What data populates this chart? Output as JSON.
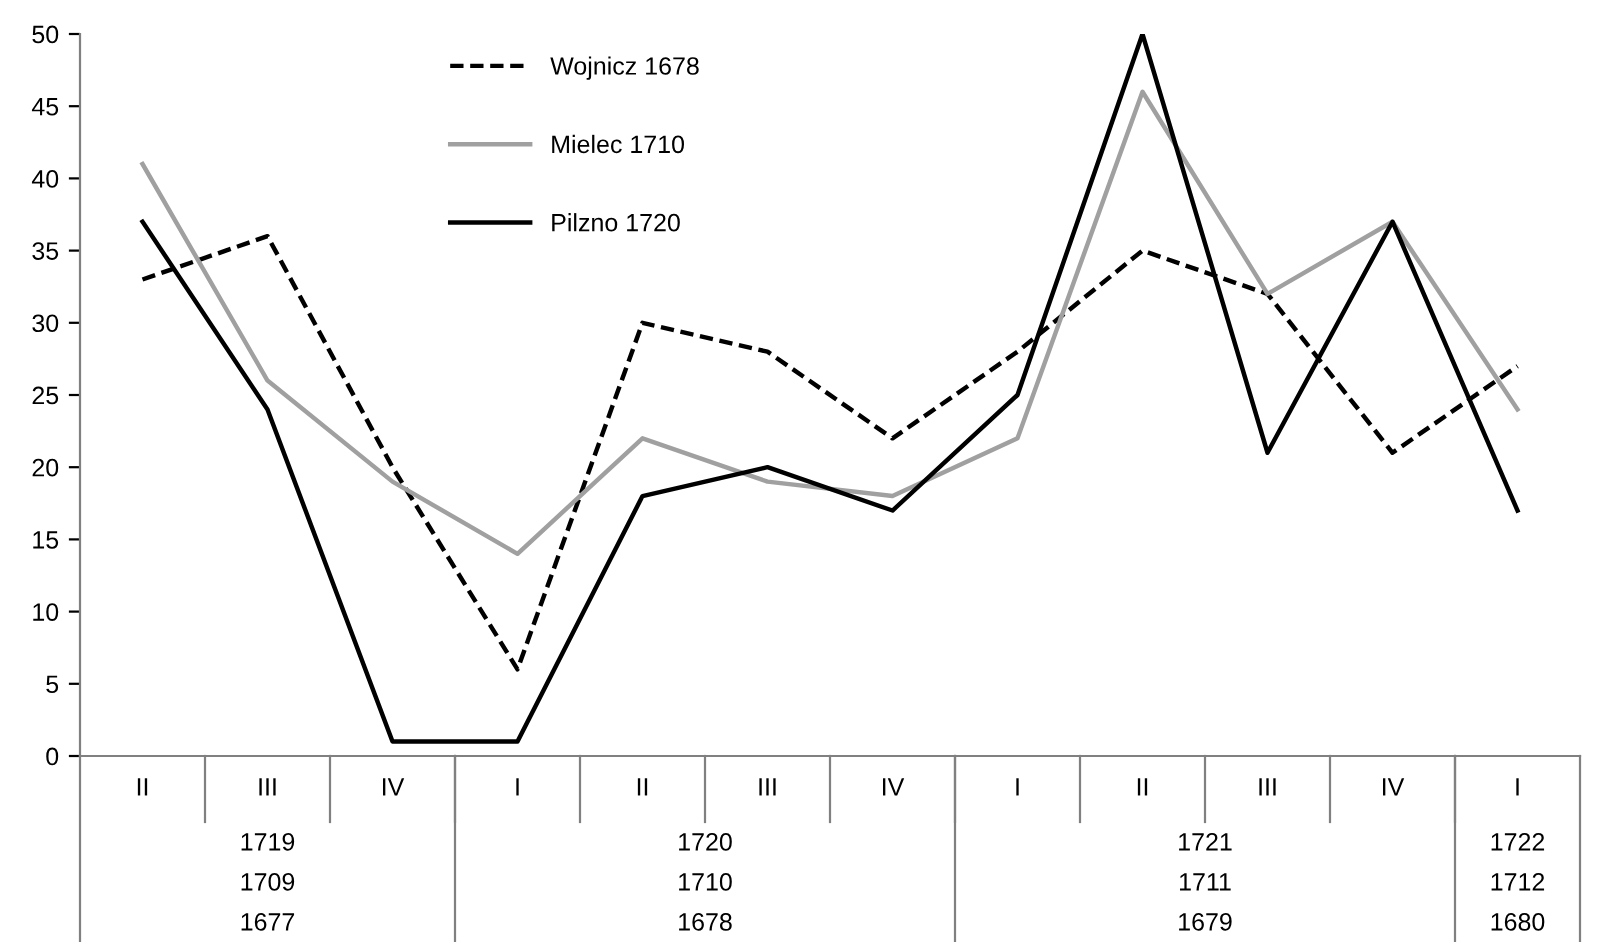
{
  "chart_data": {
    "type": "line",
    "categories": [
      "II",
      "III",
      "IV",
      "I",
      "II",
      "III",
      "IV",
      "I",
      "II",
      "III",
      "IV",
      "I"
    ],
    "series": [
      {
        "name": "Wojnicz 1678",
        "color": "#000000",
        "line_style": "dashed",
        "values": [
          33,
          36,
          20,
          6,
          30,
          28,
          22,
          28,
          35,
          32,
          21,
          27
        ]
      },
      {
        "name": "Mielec 1710",
        "color": "#a0a0a0",
        "line_style": "solid",
        "values": [
          41,
          26,
          19,
          14,
          22,
          19,
          18,
          22,
          46,
          32,
          37,
          24
        ]
      },
      {
        "name": "Pilzno 1720",
        "color": "#000000",
        "line_style": "solid",
        "values": [
          37,
          24,
          1,
          1,
          18,
          20,
          17,
          25,
          50,
          21,
          37,
          17
        ]
      }
    ],
    "ylim": [
      0,
      50
    ],
    "yticks": [
      0,
      5,
      10,
      15,
      20,
      25,
      30,
      35,
      40,
      45,
      50
    ],
    "grid": false,
    "legend": "top",
    "marker": "none",
    "annotations": [
      "1719",
      "1709",
      "1677",
      "1720",
      "1710",
      "1678",
      "1721",
      "1711",
      "1679",
      "1722",
      "1712",
      "1680"
    ]
  }
}
